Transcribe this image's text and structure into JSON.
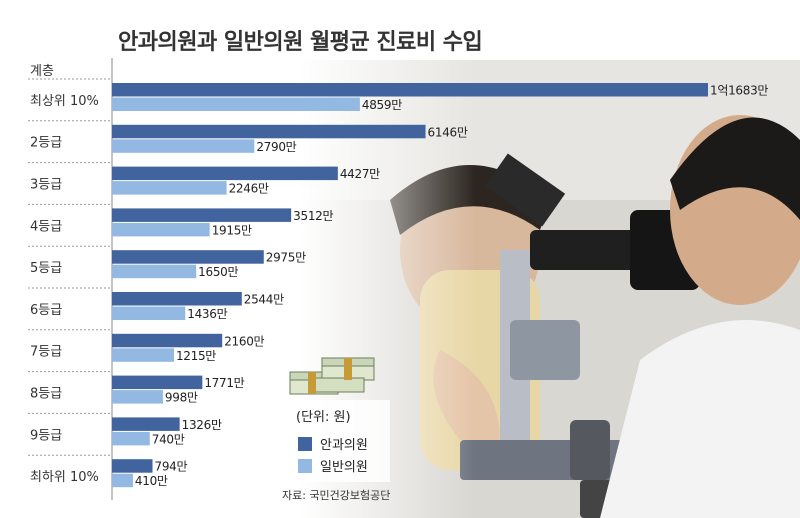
{
  "title": "안과의원과 일반의원 월평균 진료비 수입",
  "category_header": "계층",
  "legend": {
    "unit": "(단위: 원)"
  },
  "source": "자료: 국민건강보험공단",
  "colors": {
    "eye": "#41649e",
    "general": "#93b8e2",
    "separator": "#9a9a9a",
    "axis": "#888888"
  },
  "chart_data": {
    "type": "bar",
    "orientation": "horizontal",
    "categories": [
      "최상위 10%",
      "2등급",
      "3등급",
      "4등급",
      "5등급",
      "6등급",
      "7등급",
      "8등급",
      "9등급",
      "최하위 10%"
    ],
    "series": [
      {
        "name": "안과의원",
        "values": [
          116830000,
          61460000,
          44270000,
          35120000,
          29750000,
          25440000,
          21600000,
          17710000,
          13260000,
          7940000
        ],
        "labels": [
          "1억1683만",
          "6146만",
          "4427만",
          "3512만",
          "2975만",
          "2544만",
          "2160만",
          "1771만",
          "1326만",
          "794만"
        ]
      },
      {
        "name": "일반의원",
        "values": [
          48590000,
          27900000,
          22460000,
          19150000,
          16500000,
          14360000,
          12150000,
          9980000,
          7400000,
          4100000
        ],
        "labels": [
          "4859만",
          "2790만",
          "2246만",
          "1915만",
          "1650만",
          "1436만",
          "1215만",
          "998만",
          "740만",
          "410만"
        ]
      }
    ],
    "unit": "원"
  }
}
